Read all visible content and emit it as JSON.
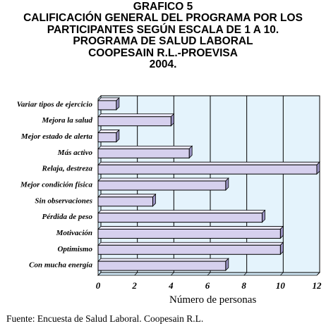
{
  "title_lines": [
    "GRAFICO 5",
    "CALIFICACIÓN GENERAL DEL PROGRAMA POR LOS",
    "PARTICIPANTES SEGÚN ESCALA DE 1 A 10.",
    "PROGRAMA DE SALUD LABORAL",
    "COOPESAIN R.L.-PROEVISA",
    "2004."
  ],
  "source": "Fuente: Encuesta de  Salud Laboral. Coopesain R.L.",
  "colors": {
    "plot_bg": "#e4f3fc",
    "bar_face": "#d6d0ee",
    "bar_top": "#ebe8f8",
    "bar_side": "#9b94c4",
    "grid": "#000000"
  },
  "chart_data": {
    "type": "bar",
    "orientation": "horizontal",
    "style": "3d",
    "categories": [
      "Variar tipos de ejercicio",
      "Mejora la salud",
      "Mejor estado de alerta",
      "Más activo",
      "Relaja, destreza",
      "Mejor condición física",
      "Sin observaciones",
      "Pérdida de peso",
      "Motivación",
      "Optimismo",
      "Con mucha energía"
    ],
    "values": [
      1,
      4,
      1,
      5,
      12,
      7,
      3,
      9,
      10,
      10,
      7
    ],
    "xlabel": "Número de personas",
    "xlim": [
      0,
      12
    ],
    "xticks": [
      "0",
      "2",
      "4",
      "6",
      "8",
      "10",
      "12"
    ],
    "grid": true
  }
}
